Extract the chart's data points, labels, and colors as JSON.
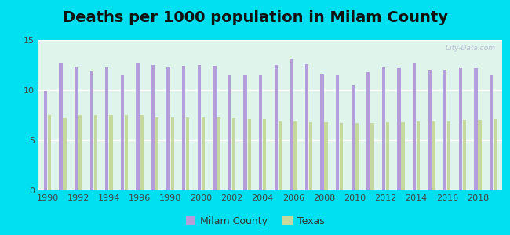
{
  "title": "Deaths per 1000 population in Milam County",
  "years": [
    1990,
    1991,
    1992,
    1993,
    1994,
    1995,
    1996,
    1997,
    1998,
    1999,
    2000,
    2001,
    2002,
    2003,
    2004,
    2005,
    2006,
    2007,
    2008,
    2009,
    2010,
    2011,
    2012,
    2013,
    2014,
    2015,
    2016,
    2017,
    2018,
    2019
  ],
  "milam": [
    9.9,
    12.7,
    12.3,
    11.9,
    12.3,
    11.5,
    12.7,
    12.5,
    12.3,
    12.4,
    12.5,
    12.4,
    11.5,
    11.5,
    11.5,
    12.5,
    13.1,
    12.6,
    11.6,
    11.5,
    10.5,
    11.8,
    12.3,
    12.2,
    12.7,
    12.0,
    12.0,
    12.2,
    12.2,
    11.5
  ],
  "texas": [
    7.5,
    7.2,
    7.5,
    7.5,
    7.5,
    7.5,
    7.5,
    7.3,
    7.3,
    7.3,
    7.3,
    7.3,
    7.2,
    7.1,
    7.1,
    6.9,
    6.9,
    6.8,
    6.8,
    6.7,
    6.7,
    6.7,
    6.8,
    6.8,
    6.9,
    6.9,
    6.9,
    7.0,
    7.0,
    7.1
  ],
  "milam_color": "#b39ddb",
  "texas_color": "#c5d89d",
  "bg_top": "#d6f0e8",
  "bg_bottom": "#e8f8f0",
  "outer_bg": "#00e0f0",
  "ylim": [
    0,
    15
  ],
  "yticks": [
    0,
    5,
    10,
    15
  ],
  "title_fontsize": 14,
  "legend_milam": "Milam County",
  "legend_texas": "Texas",
  "watermark": "City-Data.com"
}
